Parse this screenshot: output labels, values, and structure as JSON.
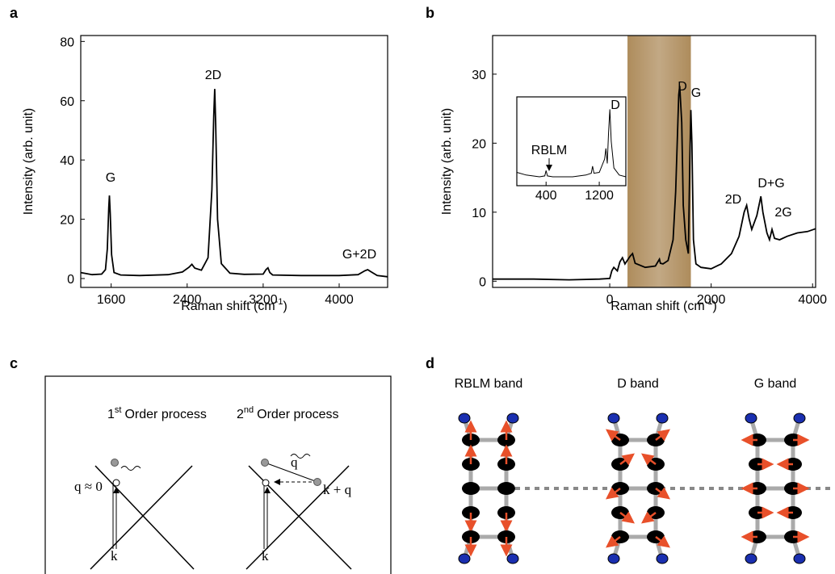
{
  "figure": {
    "panel_labels": [
      "a",
      "b",
      "c",
      "d"
    ]
  },
  "chart_data": [
    {
      "type": "line",
      "y_label": "Intensity (arb. unit)",
      "x_label": {
        "text": "Raman shift (cm",
        "sup": "-1",
        "close": ")"
      },
      "color": "#000000",
      "x": [
        1280,
        1400,
        1500,
        1540,
        1560,
        1575,
        1582,
        1590,
        1605,
        1630,
        1700,
        1900,
        2200,
        2350,
        2420,
        2450,
        2480,
        2550,
        2620,
        2660,
        2680,
        2690,
        2700,
        2720,
        2760,
        2850,
        3000,
        3200,
        3230,
        3250,
        3270,
        3300,
        3600,
        4000,
        4200,
        4270,
        4300,
        4330,
        4400,
        4510
      ],
      "values": [
        2,
        1.3,
        1.5,
        3,
        10,
        24,
        28,
        22,
        8,
        2,
        1.2,
        1,
        1.3,
        2.2,
        3.8,
        4.8,
        3.5,
        2.8,
        7,
        30,
        55,
        64,
        52,
        20,
        5,
        1.8,
        1.4,
        1.5,
        3,
        3.6,
        2,
        1.2,
        1,
        1,
        1.3,
        2.6,
        3,
        2.4,
        1,
        0.6
      ],
      "xlim": [
        1280,
        4510
      ],
      "ylim": [
        -3,
        82
      ],
      "xticks": [
        1600,
        2400,
        3200,
        4000
      ],
      "yticks": [
        0,
        20,
        40,
        60,
        80
      ],
      "annotations": [
        "G",
        "2D",
        "G+2D"
      ]
    },
    {
      "type": "line",
      "y_label": "Intensity (arb. unit)",
      "x_label": {
        "text": "Raman shift (cm",
        "sup": "-1",
        "close": ")"
      },
      "color": "#000000",
      "shade": [
        350,
        1600
      ],
      "shade_color": "#a07840",
      "x": [
        -2310,
        -1500,
        -800,
        -200,
        0,
        40,
        80,
        150,
        200,
        250,
        300,
        400,
        450,
        500,
        700,
        900,
        980,
        1000,
        1050,
        1150,
        1250,
        1300,
        1330,
        1360,
        1380,
        1420,
        1450,
        1500,
        1550,
        1580,
        1600,
        1620,
        1650,
        1700,
        1800,
        2000,
        2200,
        2400,
        2550,
        2650,
        2700,
        2750,
        2800,
        2900,
        2980,
        3020,
        3100,
        3150,
        3200,
        3250,
        3350,
        3500,
        3700,
        3900,
        4060
      ],
      "values": [
        0.3,
        0.3,
        0.2,
        0.3,
        0.4,
        1.5,
        2,
        1.5,
        2.8,
        3.4,
        2.5,
        3.6,
        4,
        2.6,
        2,
        2.2,
        3.2,
        2.6,
        2.5,
        3,
        6,
        13,
        20,
        27,
        28.3,
        23,
        11,
        6,
        4,
        18,
        24.8,
        20,
        6,
        2.5,
        2,
        1.8,
        2.5,
        4,
        6.5,
        10,
        11,
        9,
        7.5,
        9.5,
        12.3,
        10,
        7,
        6,
        7.5,
        6.2,
        6,
        6.5,
        7,
        7.2,
        7.6
      ],
      "xlim": [
        -2310,
        4060
      ],
      "ylim": [
        -0.9,
        35.6
      ],
      "xticks": [
        0,
        2000,
        4000
      ],
      "yticks": [
        0,
        10,
        20,
        30
      ],
      "annotations": [
        "D",
        "G",
        "2D",
        "D+G",
        "2G"
      ]
    },
    {
      "type": "line",
      "color": "#000000",
      "x": [
        -40,
        100,
        300,
        380,
        400,
        420,
        500,
        800,
        1000,
        1080,
        1100,
        1120,
        1200,
        1280,
        1300,
        1320,
        1340,
        1360,
        1380,
        1420,
        1500,
        1600
      ],
      "values": [
        0.15,
        0.12,
        0.1,
        0.11,
        0.17,
        0.11,
        0.1,
        0.1,
        0.12,
        0.14,
        0.22,
        0.14,
        0.15,
        0.3,
        0.42,
        0.25,
        0.6,
        0.86,
        0.5,
        0.2,
        0.12,
        0.1
      ],
      "xlim": [
        -40,
        1600
      ],
      "ylim": [
        0,
        1
      ],
      "xticks": [
        400,
        1200
      ],
      "annotations": [
        "RBLM",
        "D"
      ]
    }
  ],
  "diagram_c": {
    "first": {
      "num": "1",
      "sup": "st",
      "text": "Order process"
    },
    "second": {
      "num": "2",
      "sup": "nd",
      "text": "Order process"
    },
    "labels": [
      "q ≈ 0",
      "k",
      "q",
      "k + q",
      "k"
    ]
  },
  "diagram_d": {
    "titles": [
      "RBLM band",
      "D band",
      "G band"
    ]
  }
}
